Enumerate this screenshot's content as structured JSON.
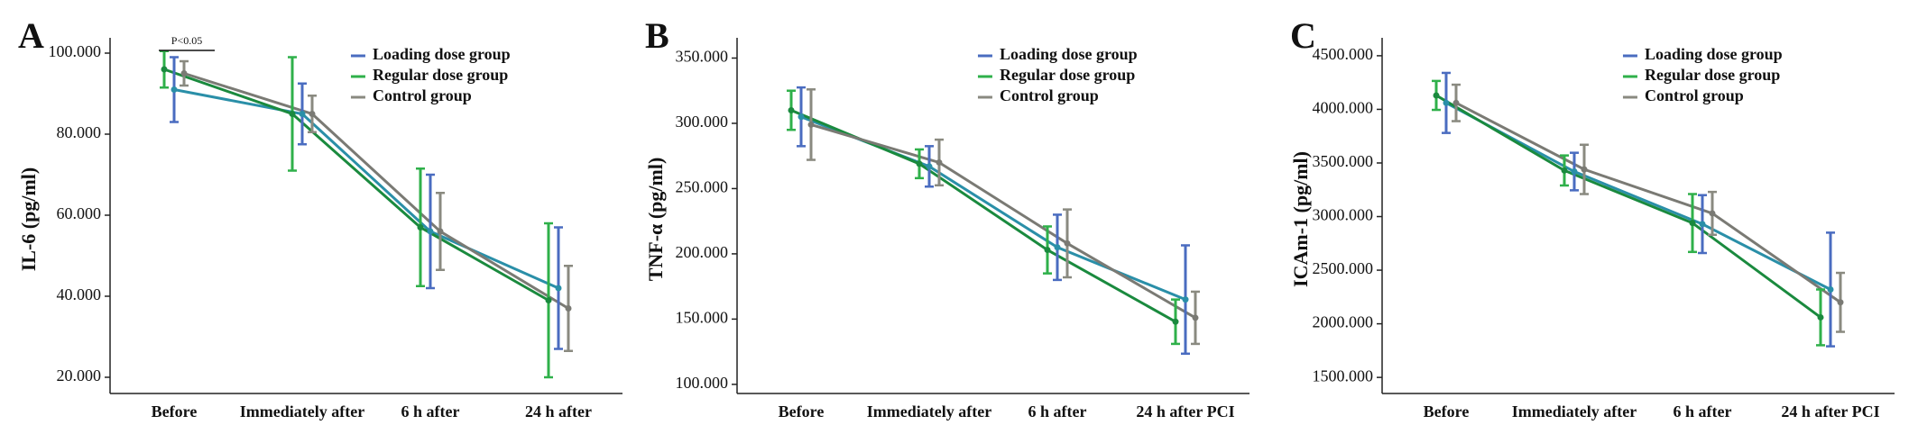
{
  "chart_data": [
    {
      "type": "line",
      "panel_label": "A",
      "ylabel": "IL-6 (pg/ml)",
      "annotation": "P<0.05",
      "categories": [
        "Before",
        "Immediately after",
        "6 h after",
        "24 h after"
      ],
      "ylim": [
        16,
        102
      ],
      "yticks": [
        {
          "value": 20,
          "label": "20.000"
        },
        {
          "value": 40,
          "label": "40.000"
        },
        {
          "value": 60,
          "label": "60.000"
        },
        {
          "value": 80,
          "label": "80.000"
        },
        {
          "value": 100,
          "label": "100.000"
        }
      ],
      "legend": "upper right",
      "grid": false,
      "series": [
        {
          "name": "Loading dose group",
          "color": "#4a6cc0",
          "line_color": "#2a8fa8",
          "values": [
            91,
            85,
            56,
            42
          ],
          "errors": [
            8,
            7.5,
            14,
            15
          ]
        },
        {
          "name": "Regular dose group",
          "color": "#2fb04a",
          "line_color": "#1a8a3e",
          "values": [
            96,
            85,
            57,
            39
          ],
          "errors": [
            4.5,
            14,
            14.5,
            19
          ]
        },
        {
          "name": "Control group",
          "color": "#8a8a80",
          "line_color": "#7a7a74",
          "values": [
            95,
            85,
            56,
            37
          ],
          "errors": [
            3,
            4.5,
            9.5,
            10.5
          ]
        }
      ]
    },
    {
      "type": "line",
      "panel_label": "B",
      "ylabel": "TNF-α (pg/ml)",
      "categories": [
        "Before",
        "Immediately after",
        "6 h after",
        "24 h after PCI"
      ],
      "ylim": [
        93,
        360
      ],
      "yticks": [
        {
          "value": 100,
          "label": "100.000"
        },
        {
          "value": 150,
          "label": "150.000"
        },
        {
          "value": 200,
          "label": "200.000"
        },
        {
          "value": 250,
          "label": "250.000"
        },
        {
          "value": 300,
          "label": "300.000"
        },
        {
          "value": 350,
          "label": "350.000"
        }
      ],
      "legend": "upper right",
      "grid": false,
      "series": [
        {
          "name": "Loading dose group",
          "color": "#4a6cc0",
          "line_color": "#2a8fa8",
          "values": [
            305,
            267,
            205,
            165
          ],
          "errors": [
            22.5,
            15.5,
            25,
            41.5
          ]
        },
        {
          "name": "Regular dose group",
          "color": "#2fb04a",
          "line_color": "#1a8a3e",
          "values": [
            310,
            269,
            203,
            148
          ],
          "errors": [
            15,
            11,
            18,
            17
          ]
        },
        {
          "name": "Control group",
          "color": "#8a8a80",
          "line_color": "#7a7a74",
          "values": [
            299,
            270,
            208,
            151
          ],
          "errors": [
            27,
            17.5,
            26,
            20
          ]
        }
      ]
    },
    {
      "type": "line",
      "panel_label": "C",
      "ylabel": "ICAm-1 (pg/ml)",
      "categories": [
        "Before",
        "Immediately after",
        "6 h after",
        "24 h after PCI"
      ],
      "ylim": [
        1350,
        4600
      ],
      "yticks": [
        {
          "value": 1500,
          "label": "1500.000"
        },
        {
          "value": 2000,
          "label": "2000.000"
        },
        {
          "value": 2500,
          "label": "2500.000"
        },
        {
          "value": 3000,
          "label": "3000.000"
        },
        {
          "value": 3500,
          "label": "3500.000"
        },
        {
          "value": 4000,
          "label": "4000.000"
        },
        {
          "value": 4500,
          "label": "4500.000"
        }
      ],
      "legend": "upper right",
      "grid": false,
      "series": [
        {
          "name": "Loading dose group",
          "color": "#4a6cc0",
          "line_color": "#2a8fa8",
          "values": [
            4060,
            3420,
            2930,
            2320
          ],
          "errors": [
            280,
            175,
            270,
            530
          ]
        },
        {
          "name": "Regular dose group",
          "color": "#2fb04a",
          "line_color": "#1a8a3e",
          "values": [
            4130,
            3430,
            2940,
            2060
          ],
          "errors": [
            135,
            140,
            270,
            260
          ]
        },
        {
          "name": "Control group",
          "color": "#8a8a80",
          "line_color": "#7a7a74",
          "values": [
            4060,
            3440,
            3030,
            2200
          ],
          "errors": [
            170,
            230,
            200,
            275
          ]
        }
      ]
    }
  ]
}
